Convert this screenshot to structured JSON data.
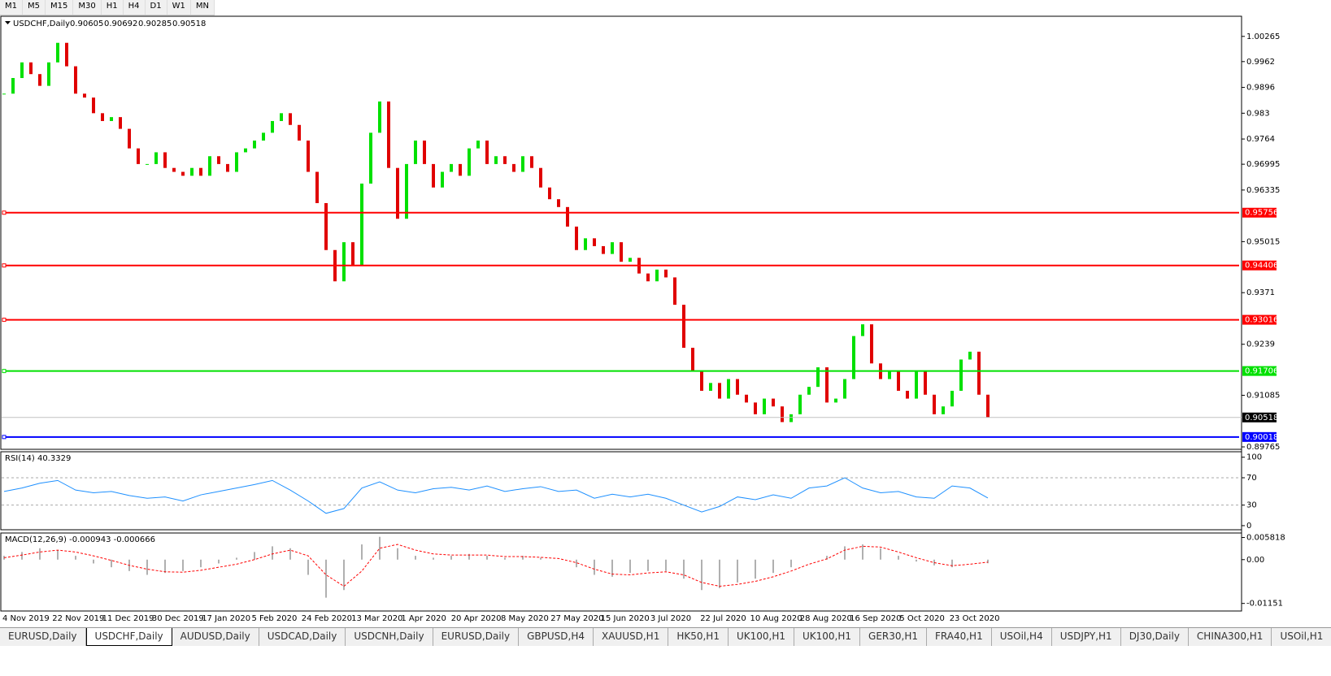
{
  "toolbar": {
    "buttons": [
      "M1",
      "M5",
      "M15",
      "M30",
      "H1",
      "H4",
      "D1",
      "W1",
      "MN"
    ]
  },
  "tabs": [
    "EURUSD,Daily",
    "USDCHF,Daily",
    "AUDUSD,Daily",
    "USDCAD,Daily",
    "USDCNH,Daily",
    "EURUSD,Daily",
    "GBPUSD,H4",
    "XAUUSD,H1",
    "HK50,H1",
    "UK100,H1",
    "UK100,H1",
    "GER30,H1",
    "FRA40,H1",
    "USOil,H4",
    "USDJPY,H1",
    "DJ30,Daily",
    "CHINA300,H1",
    "USOil,H1"
  ],
  "dates": [
    "4 Nov 2019",
    "22 Nov 2019",
    "11 Dec 2019",
    "30 Dec 2019",
    "17 Jan 2020",
    "5 Feb 2020",
    "24 Feb 2020",
    "13 Mar 2020",
    "1 Apr 2020",
    "20 Apr 2020",
    "8 May 2020",
    "27 May 2020",
    "15 Jun 2020",
    "3 Jul 2020",
    "22 Jul 2020",
    "10 Aug 2020",
    "28 Aug 2020",
    "16 Sep 2020",
    "5 Oct 2020",
    "23 Oct 2020"
  ],
  "chart_data": [
    {
      "type": "candlestick",
      "title": "USDCHF,Daily",
      "ohlc": [
        0.90605,
        0.90692,
        0.90285,
        0.90518
      ],
      "closes": [
        0.988,
        0.992,
        0.996,
        0.993,
        0.99,
        0.996,
        1.001,
        0.995,
        0.988,
        0.987,
        0.983,
        0.981,
        0.982,
        0.979,
        0.974,
        0.97,
        0.97,
        0.973,
        0.969,
        0.968,
        0.967,
        0.969,
        0.967,
        0.972,
        0.97,
        0.968,
        0.973,
        0.974,
        0.976,
        0.978,
        0.981,
        0.983,
        0.98,
        0.976,
        0.968,
        0.96,
        0.948,
        0.94,
        0.95,
        0.944,
        0.965,
        0.978,
        0.986,
        0.969,
        0.956,
        0.97,
        0.976,
        0.97,
        0.964,
        0.968,
        0.97,
        0.967,
        0.974,
        0.976,
        0.97,
        0.972,
        0.97,
        0.968,
        0.972,
        0.969,
        0.964,
        0.961,
        0.959,
        0.954,
        0.948,
        0.951,
        0.949,
        0.947,
        0.95,
        0.945,
        0.946,
        0.942,
        0.94,
        0.943,
        0.941,
        0.934,
        0.923,
        0.917,
        0.912,
        0.914,
        0.91,
        0.915,
        0.911,
        0.909,
        0.906,
        0.91,
        0.908,
        0.904,
        0.906,
        0.911,
        0.913,
        0.918,
        0.909,
        0.91,
        0.915,
        0.926,
        0.929,
        0.919,
        0.915,
        0.917,
        0.912,
        0.91,
        0.917,
        0.911,
        0.906,
        0.908,
        0.912,
        0.92,
        0.922,
        0.911,
        0.9052
      ],
      "up_color": "#00e000",
      "down_color": "#e00000",
      "ylim": [
        0.89703,
        1.0078
      ],
      "yticks": [
        1.00265,
        0.9962,
        0.9896,
        0.983,
        0.9764,
        0.96995,
        0.96335,
        0.95015,
        0.9371,
        0.9239,
        0.91085,
        0.89765
      ],
      "levels": [
        {
          "value": 0.95756,
          "color": "#ff0000"
        },
        {
          "value": 0.94406,
          "color": "#ff0000"
        },
        {
          "value": 0.93016,
          "color": "#ff0000"
        },
        {
          "value": 0.91706,
          "color": "#00e000"
        },
        {
          "value": 0.90018,
          "color": "#0000ff"
        }
      ],
      "current": 0.90518
    },
    {
      "type": "line",
      "title": "RSI(14) 40.3329",
      "color": "#1e90ff",
      "values": [
        50,
        55,
        62,
        66,
        52,
        48,
        50,
        44,
        40,
        42,
        36,
        45,
        50,
        55,
        60,
        66,
        52,
        36,
        18,
        25,
        55,
        64,
        52,
        48,
        54,
        56,
        52,
        58,
        50,
        54,
        57,
        50,
        52,
        40,
        46,
        42,
        46,
        40,
        30,
        20,
        28,
        42,
        38,
        45,
        40,
        55,
        58,
        70,
        55,
        48,
        50,
        42,
        40,
        58,
        55,
        40.3329
      ],
      "ylim": [
        -6,
        108
      ],
      "yticks": [
        100,
        70,
        30,
        0
      ],
      "dashed_levels": [
        70,
        30
      ]
    },
    {
      "type": "macd",
      "title": "MACD(12,26,9) -0.000943 -0.000666",
      "hist_color": "#b0b0b0",
      "signal_color": "#ff0000",
      "histogram": [
        0.001,
        0.002,
        0.003,
        0.0025,
        0.001,
        -0.001,
        -0.002,
        -0.003,
        -0.004,
        -0.0035,
        -0.003,
        -0.002,
        -0.001,
        0.0005,
        0.002,
        0.0035,
        0.003,
        -0.004,
        -0.01,
        -0.008,
        0.004,
        0.006,
        0.003,
        0.001,
        0.0005,
        0.001,
        0.0015,
        0.001,
        0.0005,
        0.001,
        0.0005,
        0.0,
        -0.002,
        -0.004,
        -0.0045,
        -0.0035,
        -0.003,
        -0.003,
        -0.005,
        -0.008,
        -0.0075,
        -0.006,
        -0.005,
        -0.0035,
        -0.002,
        0.0,
        0.001,
        0.0035,
        0.004,
        0.003,
        0.001,
        -0.0005,
        -0.0015,
        -0.002,
        0.0,
        -0.000943
      ],
      "signal": [
        0.0005,
        0.0012,
        0.002,
        0.0025,
        0.002,
        0.001,
        -0.0002,
        -0.0015,
        -0.0025,
        -0.0032,
        -0.0033,
        -0.0028,
        -0.002,
        -0.0012,
        0.0,
        0.0015,
        0.0025,
        0.001,
        -0.004,
        -0.007,
        -0.003,
        0.003,
        0.004,
        0.0025,
        0.0015,
        0.0012,
        0.0012,
        0.0012,
        0.0008,
        0.0008,
        0.0006,
        0.0003,
        -0.0008,
        -0.0025,
        -0.0038,
        -0.004,
        -0.0035,
        -0.0032,
        -0.004,
        -0.006,
        -0.007,
        -0.0065,
        -0.0057,
        -0.0045,
        -0.003,
        -0.0012,
        0.0002,
        0.0025,
        0.0035,
        0.0033,
        0.002,
        0.0005,
        -0.0008,
        -0.0016,
        -0.0012,
        -0.000666
      ],
      "ylim": [
        -0.0135,
        0.007
      ],
      "yticks": [
        0.005818,
        {
          "value": 0,
          "label": "0.00"
        },
        {
          "value": -0.01151,
          "label": "-0.01151"
        }
      ]
    }
  ]
}
